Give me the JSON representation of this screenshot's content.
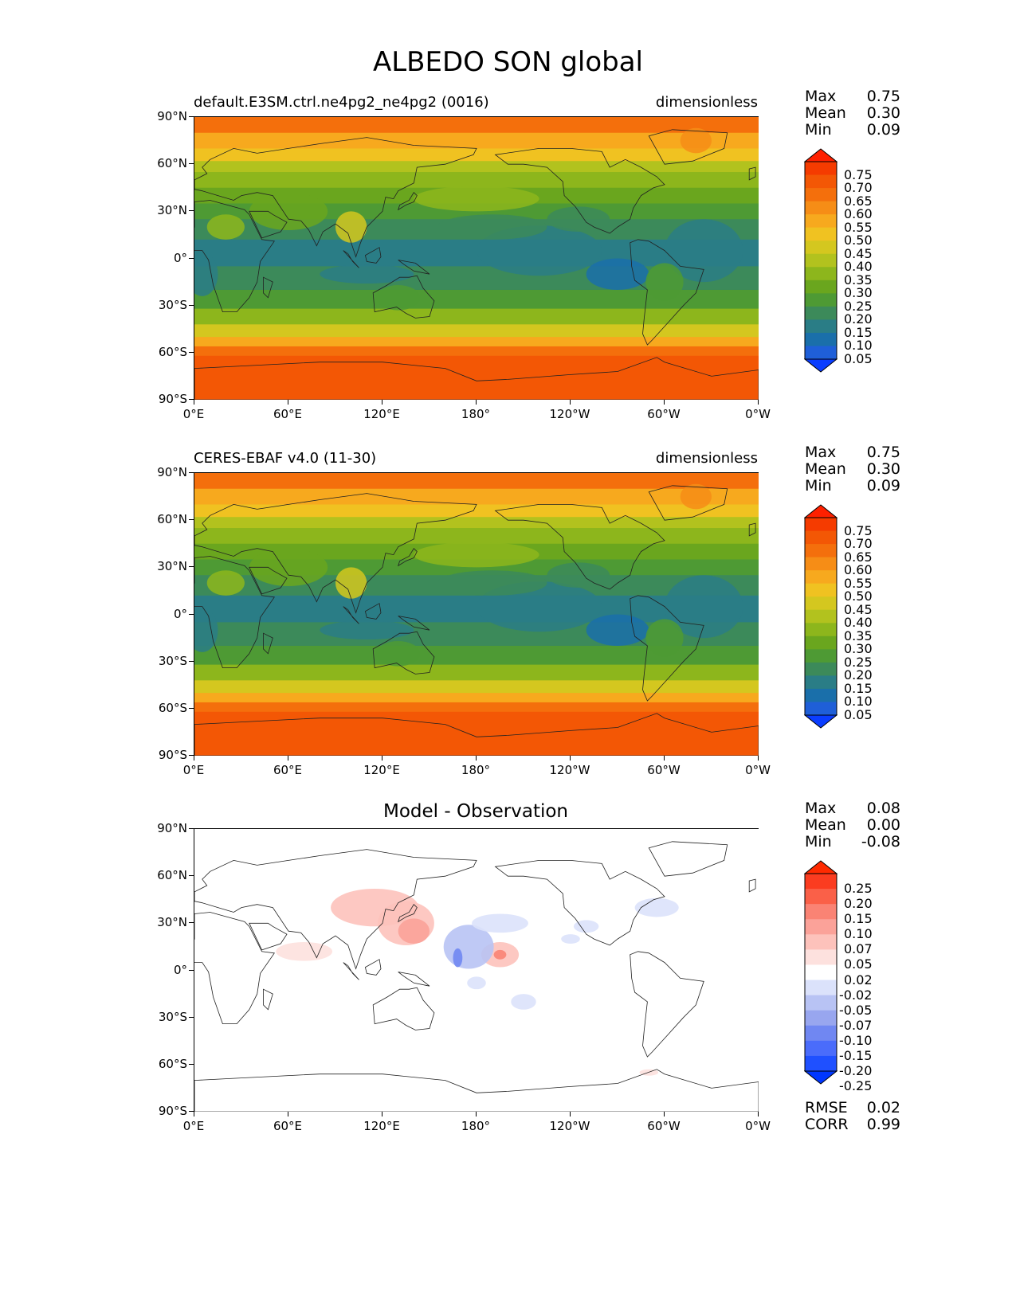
{
  "title": "ALBEDO SON global",
  "lat_labels": [
    "90°N",
    "60°N",
    "30°N",
    "0°",
    "30°S",
    "60°S",
    "90°S"
  ],
  "lon_labels": [
    "0°E",
    "60°E",
    "120°E",
    "180°",
    "120°W",
    "60°W",
    "0°W"
  ],
  "panels": [
    {
      "left_title": "default.E3SM.ctrl.ne4pg2_ne4pg2 (0016)",
      "right_title": "dimensionless",
      "center_title": "",
      "stats": [
        {
          "name": "Max",
          "value": "0.75"
        },
        {
          "name": "Mean",
          "value": "0.30"
        },
        {
          "name": "Min",
          "value": "0.09"
        }
      ],
      "colorbar_labels": [
        "0.75",
        "0.70",
        "0.65",
        "0.60",
        "0.55",
        "0.50",
        "0.45",
        "0.40",
        "0.35",
        "0.30",
        "0.25",
        "0.20",
        "0.15",
        "0.10",
        "0.05"
      ]
    },
    {
      "left_title": "CERES-EBAF v4.0 (11-30)",
      "right_title": "dimensionless",
      "center_title": "",
      "stats": [
        {
          "name": "Max",
          "value": "0.75"
        },
        {
          "name": "Mean",
          "value": "0.30"
        },
        {
          "name": "Min",
          "value": "0.09"
        }
      ],
      "colorbar_labels": [
        "0.75",
        "0.70",
        "0.65",
        "0.60",
        "0.55",
        "0.50",
        "0.45",
        "0.40",
        "0.35",
        "0.30",
        "0.25",
        "0.20",
        "0.15",
        "0.10",
        "0.05"
      ]
    },
    {
      "left_title": "",
      "right_title": "",
      "center_title": "Model - Observation",
      "stats": [
        {
          "name": "Max",
          "value": "0.08"
        },
        {
          "name": "Mean",
          "value": "0.00"
        },
        {
          "name": "Min",
          "value": "-0.08"
        }
      ],
      "colorbar_labels": [
        "0.25",
        "0.20",
        "0.15",
        "0.10",
        "0.07",
        "0.05",
        "0.02",
        "-0.02",
        "-0.05",
        "-0.07",
        "-0.10",
        "-0.15",
        "-0.20",
        "-0.25"
      ],
      "extra_stats": [
        {
          "name": "RMSE",
          "value": "0.02"
        },
        {
          "name": "CORR",
          "value": "0.99"
        }
      ]
    }
  ],
  "colors": {
    "seq": [
      "#0a3dff",
      "#1f5fd8",
      "#1a6faa",
      "#2a7d86",
      "#3c8a5a",
      "#4e9a34",
      "#6aa61e",
      "#8db61c",
      "#b2c21e",
      "#d4c71f",
      "#f0c221",
      "#f7a91e",
      "#f68d16",
      "#f46f0c",
      "#f35705",
      "#f53b00",
      "#fe2000"
    ],
    "diff": [
      "#0037ff",
      "#1f50ff",
      "#4a6cfb",
      "#7087f2",
      "#98a6ef",
      "#b8c3f4",
      "#dbe2fb",
      "#ffffff",
      "#fde1de",
      "#fdc2bb",
      "#fba299",
      "#fa8374",
      "#fa6048",
      "#fb3c20",
      "#ff2a00"
    ]
  }
}
